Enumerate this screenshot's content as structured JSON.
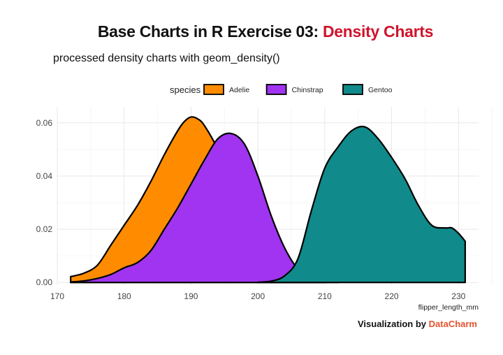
{
  "title_main": "Base Charts in R Exercise 03:",
  "title_accent": "Density Charts",
  "subtitle": "processed density charts with geom_density()",
  "caption_prefix": "Visualization by",
  "caption_brand": "DataCharm",
  "colors": {
    "accent": "#d0142c",
    "brand": "#e5532e",
    "grid": "#e5e5e5",
    "outline": "#000000"
  },
  "chart_data": {
    "type": "area",
    "xlabel": "flipper_length_mm",
    "ylabel": "",
    "xlim": [
      170,
      233
    ],
    "ylim": [
      -0.001,
      0.066
    ],
    "x_ticks": [
      170,
      180,
      190,
      200,
      210,
      220,
      230
    ],
    "y_ticks": [
      0.0,
      0.02,
      0.04,
      0.06
    ],
    "y_tick_labels": [
      "0.00",
      "0.02",
      "0.04",
      "0.06"
    ],
    "grid": true,
    "legend": {
      "title": "species",
      "position": "top"
    },
    "series": [
      {
        "name": "Adelie",
        "color": "#ff8c00",
        "x": [
          172,
          174,
          176,
          178,
          180,
          182,
          184,
          186,
          188,
          189,
          190,
          191,
          192,
          194,
          196,
          198,
          200,
          202,
          204,
          206,
          208,
          210
        ],
        "y": [
          0.0022,
          0.0035,
          0.0065,
          0.014,
          0.0215,
          0.029,
          0.038,
          0.048,
          0.057,
          0.0605,
          0.0622,
          0.0615,
          0.059,
          0.05,
          0.037,
          0.023,
          0.0125,
          0.006,
          0.0025,
          0.001,
          0.0003,
          0.0001
        ]
      },
      {
        "name": "Chinstrap",
        "color": "#a034f0",
        "x": [
          172,
          174,
          176,
          178,
          180,
          182,
          184,
          186,
          188,
          190,
          192,
          194,
          196,
          198,
          200,
          202,
          204,
          206,
          208,
          210,
          212
        ],
        "y": [
          0.0002,
          0.0006,
          0.0015,
          0.003,
          0.0055,
          0.0075,
          0.012,
          0.02,
          0.028,
          0.037,
          0.046,
          0.054,
          0.056,
          0.052,
          0.04,
          0.025,
          0.013,
          0.005,
          0.0015,
          0.0004,
          0.0001
        ]
      },
      {
        "name": "Gentoo",
        "color": "#108a8a",
        "x": [
          200,
          202,
          204,
          206,
          208,
          210,
          212,
          214,
          216,
          218,
          220,
          222,
          224,
          226,
          228,
          229,
          230,
          231
        ],
        "y": [
          0.0001,
          0.0005,
          0.0025,
          0.009,
          0.027,
          0.043,
          0.051,
          0.057,
          0.0585,
          0.054,
          0.047,
          0.039,
          0.029,
          0.0215,
          0.0205,
          0.0205,
          0.0185,
          0.0155
        ]
      }
    ]
  }
}
